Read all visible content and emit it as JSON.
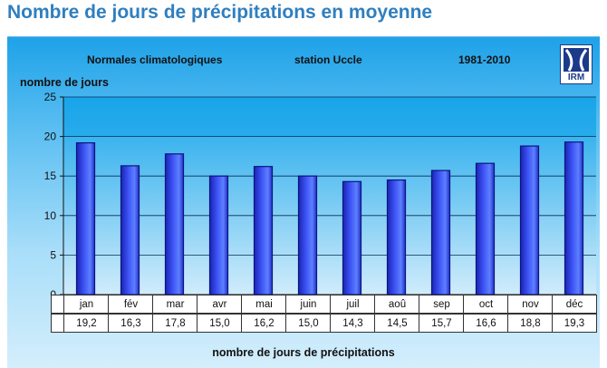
{
  "page": {
    "title": "Nombre de jours de précipitations en moyenne"
  },
  "header": {
    "left": "Normales climatologiques",
    "center": "station Uccle",
    "right": "1981-2010"
  },
  "logo": {
    "text": "IRM",
    "icon": "irm-logo-icon"
  },
  "colors": {
    "bar": "#2f3ff0",
    "bar_dark": "#1a24a8",
    "bar_light": "#5a86ff",
    "plot_top": "#1aa6ea"
  },
  "chart_data": {
    "type": "bar",
    "ylabel": "nombre de jours",
    "xlabel": "nombre de jours de précipitations",
    "ylim": [
      0,
      25
    ],
    "yticks": [
      "0",
      "5",
      "10",
      "15",
      "20",
      "25"
    ],
    "grid": true,
    "categories": [
      "jan",
      "fév",
      "mar",
      "avr",
      "mai",
      "juin",
      "juil",
      "aoû",
      "sep",
      "oct",
      "nov",
      "déc"
    ],
    "values": [
      19.2,
      16.3,
      17.8,
      15.0,
      16.2,
      15.0,
      14.3,
      14.5,
      15.7,
      16.6,
      18.8,
      19.3
    ],
    "value_labels": [
      "19,2",
      "16,3",
      "17,8",
      "15,0",
      "16,2",
      "15,0",
      "14,3",
      "14,5",
      "15,7",
      "16,6",
      "18,8",
      "19,3"
    ]
  }
}
